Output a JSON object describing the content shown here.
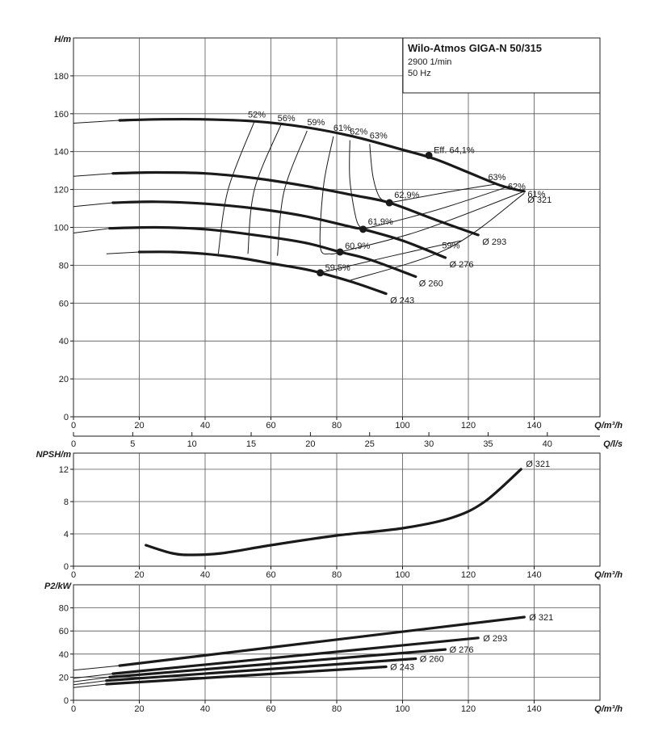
{
  "title_box": {
    "title": "Wilo-Atmos GIGA-N 50/315",
    "speed": "2900 1/min",
    "frequency": "50 Hz"
  },
  "chart_data": [
    {
      "type": "line",
      "ylabel": "H/m",
      "xlabel": "Q/m³/h",
      "xlim": [
        0,
        160
      ],
      "ylim": [
        0,
        200
      ],
      "x_ticks": [
        0,
        20,
        40,
        60,
        80,
        100,
        120,
        140
      ],
      "y_ticks": [
        0,
        20,
        40,
        60,
        80,
        100,
        120,
        140,
        160,
        180
      ],
      "secondary_x": {
        "label": "Q/l/s",
        "ticks": [
          0,
          5,
          10,
          15,
          20,
          25,
          30,
          35,
          40
        ]
      },
      "series": [
        {
          "name": "Ø 321",
          "x": [
            0,
            14,
            25,
            40,
            55,
            70,
            85,
            100,
            110,
            120,
            130,
            137
          ],
          "y": [
            155,
            156.5,
            157,
            157,
            156,
            153,
            148,
            141,
            136,
            129,
            122,
            119
          ]
        },
        {
          "name": "Ø 293",
          "x": [
            0,
            12,
            25,
            40,
            55,
            70,
            85,
            96,
            110,
            123
          ],
          "y": [
            127,
            128.5,
            129,
            128.5,
            126,
            122,
            117,
            113,
            104,
            96
          ]
        },
        {
          "name": "Ø 276",
          "x": [
            0,
            12,
            25,
            40,
            55,
            70,
            85,
            88,
            100,
            113
          ],
          "y": [
            111,
            113,
            113.5,
            112.5,
            110,
            106,
            100,
            99,
            93,
            84
          ]
        },
        {
          "name": "Ø 260",
          "x": [
            0,
            11,
            25,
            40,
            55,
            70,
            81,
            90,
            104
          ],
          "y": [
            97,
            99.5,
            100,
            99,
            96,
            92,
            87,
            83,
            74
          ]
        },
        {
          "name": "Ø 243",
          "x": [
            10,
            20,
            30,
            40,
            50,
            60,
            70,
            75,
            85,
            95
          ],
          "y": [
            86,
            87,
            87,
            86,
            84,
            81,
            78,
            76,
            71,
            65
          ]
        }
      ],
      "efficiency_markers": [
        {
          "label": "Eff. 64,1%",
          "x": 108,
          "y": 138
        },
        {
          "label": "62,9%",
          "x": 96,
          "y": 113
        },
        {
          "label": "61,9%",
          "x": 88,
          "y": 99
        },
        {
          "label": "60,9%",
          "x": 81,
          "y": 87
        },
        {
          "label": "59,5%",
          "x": 75,
          "y": 76
        }
      ],
      "efficiency_contours": [
        "52%",
        "56%",
        "59%",
        "61%",
        "62%",
        "63%",
        "63%",
        "62%",
        "61%",
        "59%"
      ]
    },
    {
      "type": "line",
      "ylabel": "NPSH/m",
      "xlabel": "Q/m³/h",
      "xlim": [
        0,
        160
      ],
      "ylim": [
        0,
        14
      ],
      "x_ticks": [
        0,
        20,
        40,
        60,
        80,
        100,
        120,
        140
      ],
      "y_ticks": [
        0,
        4,
        8,
        12
      ],
      "series": [
        {
          "name": "Ø 321",
          "x": [
            22,
            30,
            36,
            45,
            60,
            80,
            100,
            115,
            125,
            136
          ],
          "y": [
            2.6,
            1.6,
            1.4,
            1.6,
            2.6,
            3.8,
            4.7,
            6.0,
            8.0,
            12.0
          ]
        }
      ]
    },
    {
      "type": "line",
      "ylabel": "P2/kW",
      "xlabel": "Q/m³/h",
      "xlim": [
        0,
        160
      ],
      "ylim": [
        0,
        100
      ],
      "x_ticks": [
        0,
        20,
        40,
        60,
        80,
        100,
        120,
        140
      ],
      "y_ticks": [
        0,
        20,
        40,
        60,
        80
      ],
      "series": [
        {
          "name": "Ø 321",
          "x": [
            0,
            14,
            137
          ],
          "y": [
            26,
            30,
            72
          ]
        },
        {
          "name": "Ø 293",
          "x": [
            0,
            12,
            123
          ],
          "y": [
            19,
            23,
            54
          ]
        },
        {
          "name": "Ø 276",
          "x": [
            0,
            11,
            113
          ],
          "y": [
            16,
            20,
            44
          ]
        },
        {
          "name": "Ø 260",
          "x": [
            0,
            10,
            104
          ],
          "y": [
            13.5,
            17,
            36
          ]
        },
        {
          "name": "Ø 243",
          "x": [
            0,
            10,
            95
          ],
          "y": [
            11,
            14,
            29
          ]
        }
      ]
    }
  ]
}
